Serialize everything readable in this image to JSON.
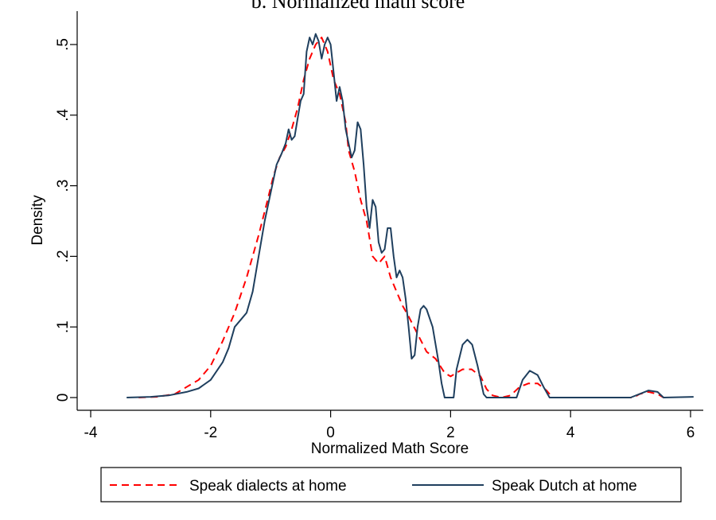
{
  "chart_data": {
    "type": "line",
    "title": "b. Normalized math score",
    "xlabel": "Normalized Math Score",
    "ylabel": "Density",
    "xlim": [
      -4,
      6
    ],
    "ylim": [
      0,
      0.5
    ],
    "x_ticks": [
      -4,
      -2,
      0,
      2,
      4,
      6
    ],
    "x_tick_labels": [
      "-4",
      "-2",
      "0",
      "2",
      "4",
      "6"
    ],
    "y_ticks": [
      0,
      0.1,
      0.2,
      0.3,
      0.4,
      0.5
    ],
    "y_tick_labels": [
      "0",
      ".1",
      ".2",
      ".3",
      ".4",
      ".5"
    ],
    "grid": false,
    "legend": "bottom",
    "series": [
      {
        "name": "Speak dialects at home",
        "color": "#ff0000",
        "dash": "dashed",
        "points": [
          [
            -3.2,
            0.0
          ],
          [
            -2.9,
            0.001
          ],
          [
            -2.6,
            0.005
          ],
          [
            -2.4,
            0.015
          ],
          [
            -2.2,
            0.025
          ],
          [
            -2.0,
            0.045
          ],
          [
            -1.8,
            0.08
          ],
          [
            -1.6,
            0.12
          ],
          [
            -1.4,
            0.17
          ],
          [
            -1.2,
            0.23
          ],
          [
            -1.05,
            0.28
          ],
          [
            -0.95,
            0.315
          ],
          [
            -0.85,
            0.34
          ],
          [
            -0.75,
            0.355
          ],
          [
            -0.65,
            0.38
          ],
          [
            -0.55,
            0.41
          ],
          [
            -0.45,
            0.45
          ],
          [
            -0.35,
            0.48
          ],
          [
            -0.25,
            0.5
          ],
          [
            -0.15,
            0.51
          ],
          [
            -0.05,
            0.49
          ],
          [
            0.05,
            0.45
          ],
          [
            0.15,
            0.43
          ],
          [
            0.25,
            0.39
          ],
          [
            0.3,
            0.35
          ],
          [
            0.4,
            0.32
          ],
          [
            0.5,
            0.28
          ],
          [
            0.6,
            0.25
          ],
          [
            0.7,
            0.2
          ],
          [
            0.8,
            0.19
          ],
          [
            0.9,
            0.2
          ],
          [
            1.0,
            0.17
          ],
          [
            1.1,
            0.15
          ],
          [
            1.2,
            0.13
          ],
          [
            1.3,
            0.115
          ],
          [
            1.45,
            0.09
          ],
          [
            1.6,
            0.065
          ],
          [
            1.75,
            0.055
          ],
          [
            1.9,
            0.035
          ],
          [
            2.0,
            0.03
          ],
          [
            2.1,
            0.035
          ],
          [
            2.2,
            0.04
          ],
          [
            2.35,
            0.04
          ],
          [
            2.5,
            0.03
          ],
          [
            2.6,
            0.012
          ],
          [
            2.7,
            0.003
          ],
          [
            2.85,
            0.0
          ],
          [
            3.0,
            0.003
          ],
          [
            3.15,
            0.015
          ],
          [
            3.3,
            0.02
          ],
          [
            3.45,
            0.02
          ],
          [
            3.6,
            0.01
          ],
          [
            3.7,
            0.0
          ],
          [
            5.05,
            0.0
          ],
          [
            5.15,
            0.005
          ],
          [
            5.3,
            0.008
          ],
          [
            5.45,
            0.005
          ],
          [
            5.55,
            0.0
          ]
        ]
      },
      {
        "name": "Speak Dutch at home",
        "color": "#1f3f5e",
        "dash": "solid",
        "points": [
          [
            -3.4,
            0.0
          ],
          [
            -3.0,
            0.001
          ],
          [
            -2.7,
            0.003
          ],
          [
            -2.4,
            0.008
          ],
          [
            -2.2,
            0.013
          ],
          [
            -2.0,
            0.025
          ],
          [
            -1.8,
            0.05
          ],
          [
            -1.7,
            0.07
          ],
          [
            -1.6,
            0.1
          ],
          [
            -1.5,
            0.11
          ],
          [
            -1.4,
            0.12
          ],
          [
            -1.3,
            0.15
          ],
          [
            -1.2,
            0.2
          ],
          [
            -1.1,
            0.25
          ],
          [
            -1.0,
            0.29
          ],
          [
            -0.9,
            0.33
          ],
          [
            -0.82,
            0.345
          ],
          [
            -0.75,
            0.36
          ],
          [
            -0.7,
            0.38
          ],
          [
            -0.65,
            0.365
          ],
          [
            -0.6,
            0.37
          ],
          [
            -0.55,
            0.395
          ],
          [
            -0.5,
            0.42
          ],
          [
            -0.45,
            0.43
          ],
          [
            -0.4,
            0.49
          ],
          [
            -0.35,
            0.51
          ],
          [
            -0.3,
            0.5
          ],
          [
            -0.25,
            0.515
          ],
          [
            -0.2,
            0.505
          ],
          [
            -0.15,
            0.48
          ],
          [
            -0.1,
            0.5
          ],
          [
            -0.05,
            0.51
          ],
          [
            0.0,
            0.5
          ],
          [
            0.05,
            0.46
          ],
          [
            0.1,
            0.42
          ],
          [
            0.15,
            0.44
          ],
          [
            0.2,
            0.42
          ],
          [
            0.25,
            0.38
          ],
          [
            0.3,
            0.36
          ],
          [
            0.35,
            0.34
          ],
          [
            0.4,
            0.35
          ],
          [
            0.45,
            0.39
          ],
          [
            0.5,
            0.38
          ],
          [
            0.55,
            0.33
          ],
          [
            0.6,
            0.27
          ],
          [
            0.65,
            0.24
          ],
          [
            0.7,
            0.28
          ],
          [
            0.75,
            0.27
          ],
          [
            0.8,
            0.22
          ],
          [
            0.85,
            0.205
          ],
          [
            0.9,
            0.21
          ],
          [
            0.95,
            0.24
          ],
          [
            1.0,
            0.24
          ],
          [
            1.05,
            0.2
          ],
          [
            1.1,
            0.17
          ],
          [
            1.15,
            0.18
          ],
          [
            1.2,
            0.17
          ],
          [
            1.25,
            0.14
          ],
          [
            1.3,
            0.1
          ],
          [
            1.35,
            0.055
          ],
          [
            1.4,
            0.06
          ],
          [
            1.45,
            0.1
          ],
          [
            1.5,
            0.125
          ],
          [
            1.55,
            0.13
          ],
          [
            1.6,
            0.125
          ],
          [
            1.7,
            0.1
          ],
          [
            1.8,
            0.05
          ],
          [
            1.85,
            0.02
          ],
          [
            1.9,
            0.0
          ],
          [
            2.05,
            0.0
          ],
          [
            2.1,
            0.04
          ],
          [
            2.2,
            0.075
          ],
          [
            2.28,
            0.082
          ],
          [
            2.36,
            0.075
          ],
          [
            2.45,
            0.045
          ],
          [
            2.55,
            0.005
          ],
          [
            2.6,
            0.0
          ],
          [
            3.1,
            0.0
          ],
          [
            3.2,
            0.025
          ],
          [
            3.32,
            0.038
          ],
          [
            3.45,
            0.032
          ],
          [
            3.55,
            0.015
          ],
          [
            3.65,
            0.0
          ],
          [
            5.0,
            0.0
          ],
          [
            5.15,
            0.005
          ],
          [
            5.3,
            0.01
          ],
          [
            5.45,
            0.008
          ],
          [
            5.55,
            0.0
          ],
          [
            6.05,
            0.001
          ]
        ]
      }
    ]
  }
}
